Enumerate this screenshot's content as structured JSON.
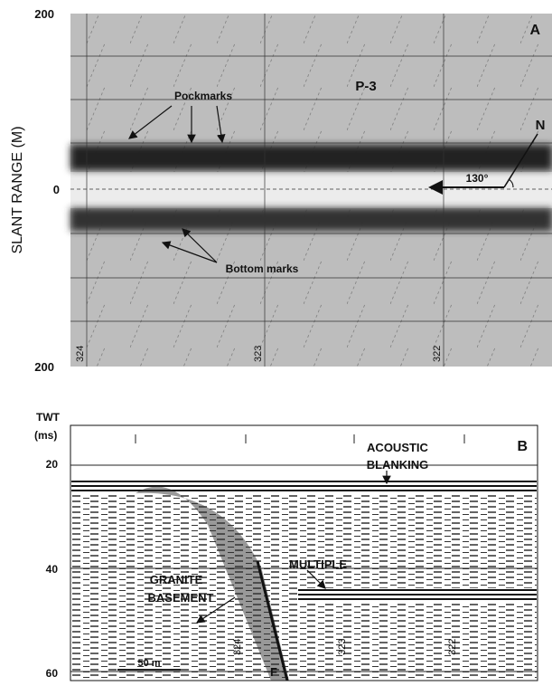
{
  "panel_a": {
    "label": "A",
    "y_axis_title": "SLANT RANGE (M)",
    "y_labels": [
      "200",
      "0",
      "200"
    ],
    "line_name": "P-3",
    "north": "N",
    "angle": "130°",
    "annotations": [
      "Pockmarks",
      "Bottom marks"
    ],
    "fix_labels": [
      "324",
      "323",
      "322"
    ]
  },
  "panel_b": {
    "label": "B",
    "y_axis_title": [
      "TWT",
      "(ms)"
    ],
    "y_labels": [
      "20",
      "40",
      "60"
    ],
    "annotations": [
      "ACOUSTIC",
      "BLANKING",
      "MULTIPLE",
      "GRANITE",
      "BASEMENT",
      "F"
    ],
    "scale_bar": "50 m",
    "fix_labels": [
      "324",
      "323",
      "322"
    ]
  }
}
